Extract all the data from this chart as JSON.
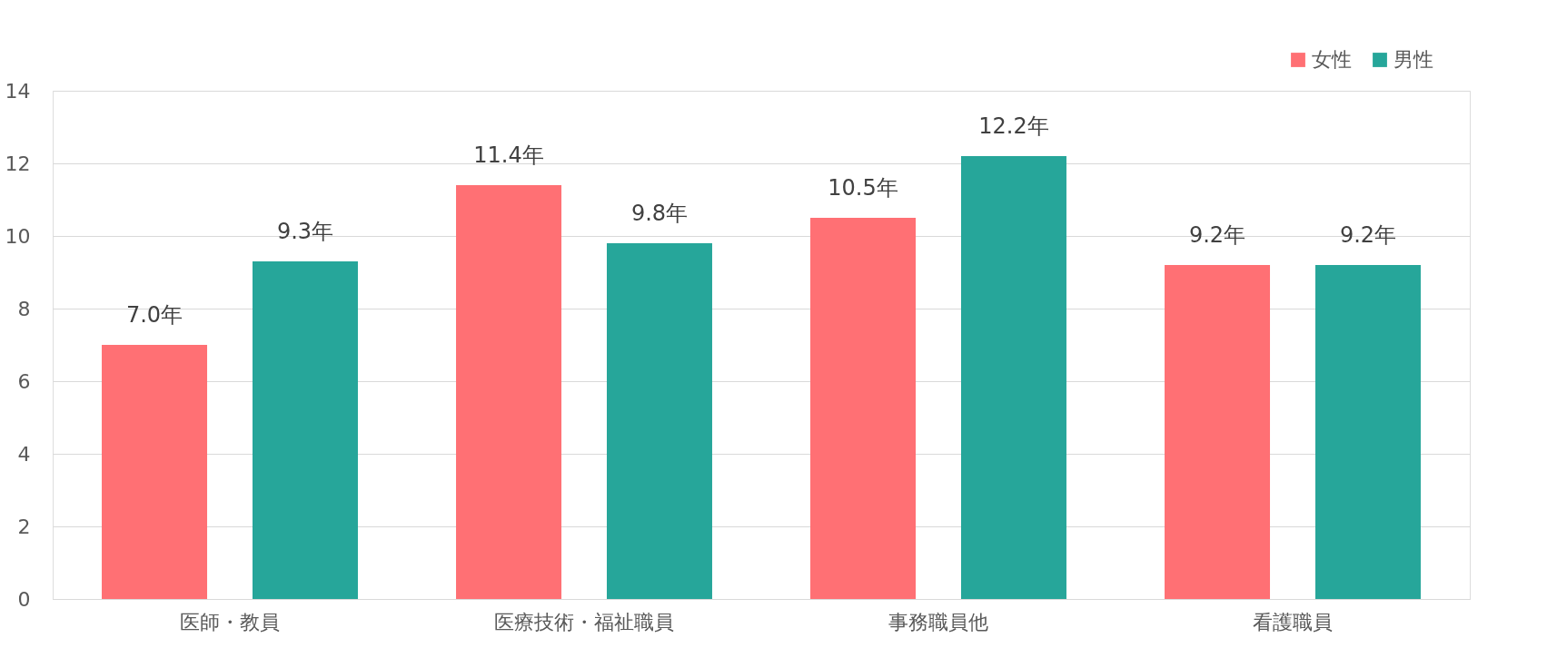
{
  "chart_data": {
    "type": "bar",
    "categories": [
      "医師・教員",
      "医療技術・福祉職員",
      "事務職員他",
      "看護職員"
    ],
    "series": [
      {
        "name": "女性",
        "color": "#ff7074",
        "values": [
          7.0,
          11.4,
          10.5,
          9.2
        ],
        "value_labels": [
          "7.0年",
          "11.4年",
          "10.5年",
          "9.2年"
        ]
      },
      {
        "name": "男性",
        "color": "#26a69a",
        "values": [
          9.3,
          9.8,
          12.2,
          9.2
        ],
        "value_labels": [
          "9.3年",
          "9.8年",
          "12.2年",
          "9.2年"
        ]
      }
    ],
    "ylim": [
      0,
      14
    ],
    "yticks": [
      0,
      2,
      4,
      6,
      8,
      10,
      12,
      14
    ],
    "grid": "y",
    "legend": "top right"
  }
}
